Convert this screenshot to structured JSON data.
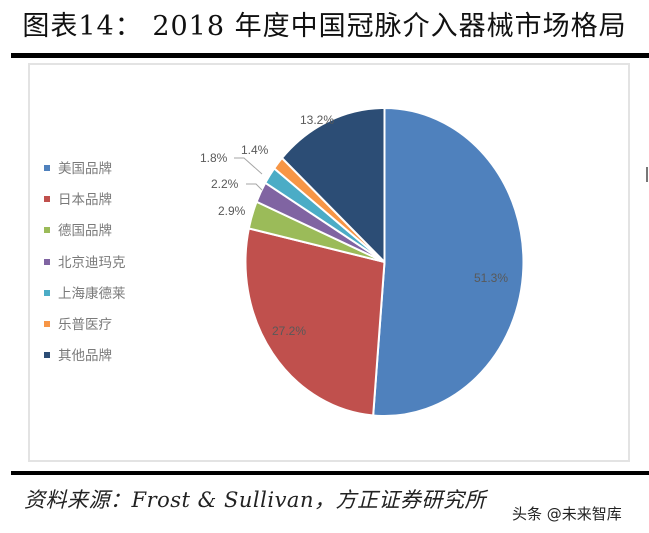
{
  "header": {
    "title": "图表14：  2018 年度中国冠脉介入器械市场格局"
  },
  "chart_data": {
    "type": "pie",
    "title": "2018 年度中国冠脉介入器械市场格局",
    "figure_number": "图表14",
    "unit": "%",
    "categories": [
      "美国品牌",
      "日本品牌",
      "德国品牌",
      "北京迪玛克",
      "上海康德莱",
      "乐普医疗",
      "其他品牌"
    ],
    "values": [
      51.3,
      27.2,
      2.9,
      2.2,
      1.8,
      1.4,
      13.2
    ],
    "labels": [
      "51.3%",
      "27.2%",
      "2.9%",
      "2.2%",
      "1.8%",
      "1.4%",
      "13.2%"
    ],
    "colors": [
      "#4f81bd",
      "#c0504d",
      "#9bbb59",
      "#8064a2",
      "#4bacc6",
      "#f79646",
      "#2c4d75"
    ],
    "start_angle_deg": 0,
    "direction": "clockwise",
    "legend_position": "left"
  },
  "legend": {
    "items": [
      {
        "label": "美国品牌",
        "color": "#4f81bd"
      },
      {
        "label": "日本品牌",
        "color": "#c0504d"
      },
      {
        "label": "德国品牌",
        "color": "#9bbb59"
      },
      {
        "label": "北京迪玛克",
        "color": "#8064a2"
      },
      {
        "label": "上海康德莱",
        "color": "#4bacc6"
      },
      {
        "label": "乐普医疗",
        "color": "#f79646"
      },
      {
        "label": "其他品牌",
        "color": "#2c4d75"
      }
    ]
  },
  "footer": {
    "source": "资料来源：Frost & Sullivan，方正证券研究所",
    "watermark": "头条 @未来智库"
  }
}
